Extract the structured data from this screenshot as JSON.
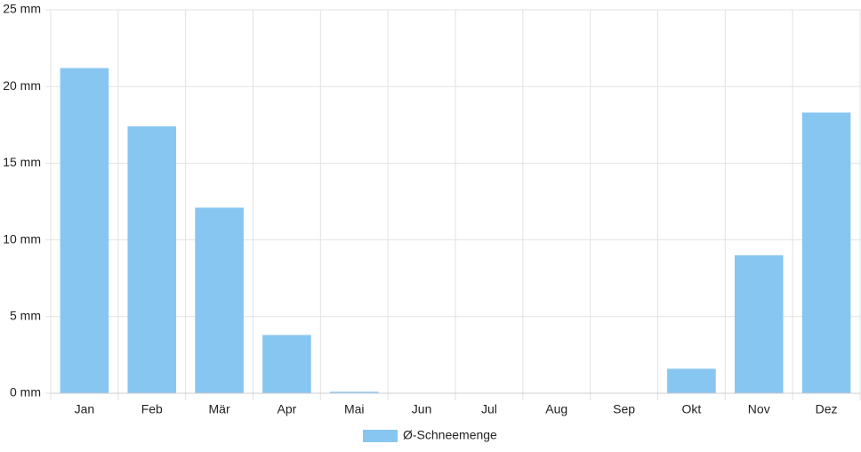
{
  "chart_data": {
    "type": "bar",
    "categories": [
      "Jan",
      "Feb",
      "Mär",
      "Apr",
      "Mai",
      "Jun",
      "Jul",
      "Aug",
      "Sep",
      "Okt",
      "Nov",
      "Dez"
    ],
    "series": [
      {
        "name": "Ø-Schneemenge",
        "color": "#88c6f2",
        "values": [
          21.2,
          17.4,
          12.1,
          3.8,
          0.1,
          0,
          0,
          0,
          0,
          1.6,
          9.0,
          18.3
        ]
      }
    ],
    "ylim": [
      0,
      25
    ],
    "yticks": [
      {
        "value": 0,
        "label": "0 mm"
      },
      {
        "value": 5,
        "label": "5 mm"
      },
      {
        "value": 10,
        "label": "10 mm"
      },
      {
        "value": 15,
        "label": "15 mm"
      },
      {
        "value": 20,
        "label": "20 mm"
      },
      {
        "value": 25,
        "label": "25 mm"
      }
    ],
    "grid": true,
    "legend": "bottom"
  }
}
